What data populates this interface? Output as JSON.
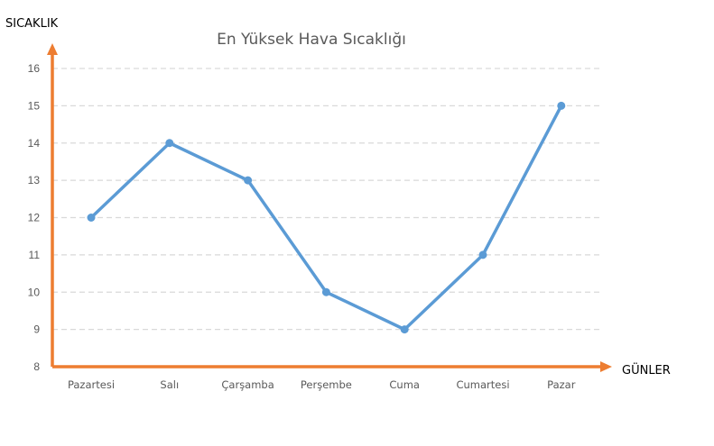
{
  "chart_data": {
    "type": "line",
    "title": "En Yüksek Hava Sıcaklığı",
    "xlabel": "GÜNLER",
    "ylabel": "SICAKLIK",
    "categories": [
      "Pazartesi",
      "Salı",
      "Çarşamba",
      "Perşembe",
      "Cuma",
      "Cumartesi",
      "Pazar"
    ],
    "series": [
      {
        "values": [
          12,
          14,
          13,
          10,
          9,
          11,
          15
        ]
      }
    ],
    "ylim": [
      8,
      16
    ],
    "yticks": [
      "8",
      "9",
      "10",
      "11",
      "12",
      "13",
      "14",
      "15",
      "16"
    ],
    "grid": true,
    "legend": "none",
    "colors": {
      "line": "#5b9bd5",
      "axis": "#ed7d31",
      "grid": "#d9d9d9"
    }
  }
}
